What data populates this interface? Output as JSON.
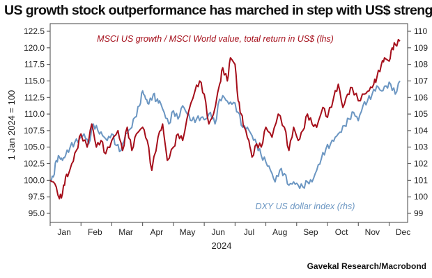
{
  "title": "US growth stock outperformance has marched in step with US$ strength",
  "source": "Gavekal Research/Macrobond",
  "colors": {
    "red": "#a50e1a",
    "blue": "#6b96c2",
    "axis": "#444444"
  },
  "chart_data": {
    "type": "line",
    "title": "US growth stock outperformance has marched in step with US$ strength",
    "xlabel": "2024",
    "ylabel_left": "1 Jan 2024 = 100",
    "ylim_left": [
      94,
      123.5
    ],
    "ylim_right": [
      98.4,
      110.4
    ],
    "left_ticks": [
      "95.0",
      "97.5",
      "100.0",
      "102.5",
      "105.0",
      "107.5",
      "110.0",
      "112.5",
      "115.0",
      "117.5",
      "120.0",
      "122.5"
    ],
    "right_ticks": [
      "99",
      "100",
      "101",
      "102",
      "103",
      "104",
      "105",
      "106",
      "107",
      "108",
      "109",
      "110"
    ],
    "months": [
      "Jan",
      "Feb",
      "Mar",
      "Apr",
      "May",
      "Jun",
      "Jul",
      "Aug",
      "Sep",
      "Oct",
      "Nov",
      "Dec"
    ],
    "series": [
      {
        "name": "MSCI US growth / MSCI World value, total return in US$ (lhs)",
        "axis": "left",
        "x": [
          0.0,
          0.15,
          0.3,
          0.4,
          0.5,
          0.6,
          0.7,
          0.85,
          1.0,
          1.2,
          1.35,
          1.5,
          1.65,
          1.8,
          2.0,
          2.2,
          2.35,
          2.5,
          2.65,
          2.8,
          3.0,
          3.15,
          3.3,
          3.5,
          3.65,
          3.8,
          4.0,
          4.15,
          4.3,
          4.5,
          4.7,
          4.85,
          5.0,
          5.15,
          5.3,
          5.5,
          5.6,
          5.75,
          5.85,
          6.0,
          6.1,
          6.2,
          6.3,
          6.45,
          6.55,
          6.7,
          6.85,
          7.0,
          7.2,
          7.4,
          7.6,
          7.75,
          7.9,
          8.05,
          8.2,
          8.35,
          8.5,
          8.65,
          8.85,
          9.0,
          9.2,
          9.35,
          9.5,
          9.65,
          9.8,
          10.0,
          10.2,
          10.35,
          10.5,
          10.6,
          10.75,
          10.85,
          11.0,
          11.1,
          11.2,
          11.35
        ],
        "values": [
          100.0,
          99.5,
          97.2,
          98.0,
          100.5,
          101.0,
          102.5,
          104.5,
          107.0,
          105.0,
          108.5,
          105.0,
          106.0,
          104.0,
          106.0,
          107.5,
          104.5,
          108.0,
          104.5,
          107.0,
          108.0,
          106.0,
          101.5,
          106.5,
          108.5,
          103.0,
          105.0,
          107.0,
          106.0,
          110.5,
          113.5,
          115.0,
          113.0,
          108.5,
          110.0,
          114.5,
          117.0,
          115.0,
          118.5,
          117.5,
          112.0,
          110.0,
          108.0,
          106.0,
          103.5,
          105.5,
          105.0,
          108.0,
          106.5,
          110.0,
          108.0,
          104.5,
          108.0,
          106.0,
          107.5,
          110.0,
          108.5,
          108.0,
          111.0,
          109.5,
          112.5,
          114.5,
          111.0,
          113.0,
          114.0,
          112.0,
          113.0,
          113.5,
          114.5,
          115.5,
          117.5,
          118.5,
          118.0,
          120.0,
          120.5,
          121.0
        ]
      },
      {
        "name": "DXY US dollar index (rhs)",
        "axis": "right",
        "x": [
          0.0,
          0.1,
          0.2,
          0.3,
          0.4,
          0.5,
          0.65,
          0.8,
          0.95,
          1.1,
          1.25,
          1.4,
          1.55,
          1.7,
          1.85,
          2.0,
          2.15,
          2.3,
          2.45,
          2.6,
          2.75,
          2.9,
          3.0,
          3.1,
          3.2,
          3.35,
          3.45,
          3.55,
          3.7,
          3.85,
          4.0,
          4.15,
          4.3,
          4.45,
          4.6,
          4.75,
          4.9,
          5.05,
          5.2,
          5.35,
          5.5,
          5.65,
          5.8,
          5.95,
          6.1,
          6.25,
          6.4,
          6.55,
          6.7,
          6.85,
          7.0,
          7.15,
          7.3,
          7.45,
          7.6,
          7.75,
          7.9,
          8.05,
          8.2,
          8.35,
          8.5,
          8.65,
          8.8,
          8.95,
          9.1,
          9.25,
          9.4,
          9.55,
          9.7,
          9.85,
          10.0,
          10.15,
          10.3,
          10.45,
          10.6,
          10.75,
          10.9,
          11.05,
          11.2,
          11.35
        ],
        "values": [
          101.0,
          101.2,
          102.2,
          102.4,
          102.2,
          102.5,
          103.0,
          103.3,
          103.5,
          103.8,
          103.2,
          104.4,
          104.0,
          103.7,
          103.4,
          103.8,
          103.1,
          102.8,
          103.8,
          104.1,
          104.8,
          105.5,
          106.4,
          105.9,
          105.6,
          106.2,
          105.8,
          105.8,
          105.1,
          104.4,
          105.2,
          104.7,
          105.5,
          105.0,
          104.6,
          104.7,
          104.8,
          104.7,
          105.1,
          104.4,
          105.9,
          106.0,
          105.6,
          105.7,
          105.1,
          104.2,
          104.2,
          103.7,
          103.2,
          102.5,
          102.1,
          101.6,
          100.9,
          101.6,
          101.4,
          100.7,
          100.9,
          100.7,
          100.6,
          100.9,
          100.9,
          101.6,
          102.3,
          102.9,
          103.2,
          103.6,
          103.9,
          104.3,
          104.7,
          105.1,
          104.6,
          105.5,
          105.8,
          106.2,
          106.7,
          106.4,
          106.7,
          106.8,
          106.2,
          107.0
        ]
      }
    ],
    "annotations": [
      {
        "text": "MSCI US growth / MSCI World value, total return in US$ (lhs)",
        "series": 0
      },
      {
        "text": "DXY US dollar index (rhs)",
        "series": 1
      }
    ]
  }
}
